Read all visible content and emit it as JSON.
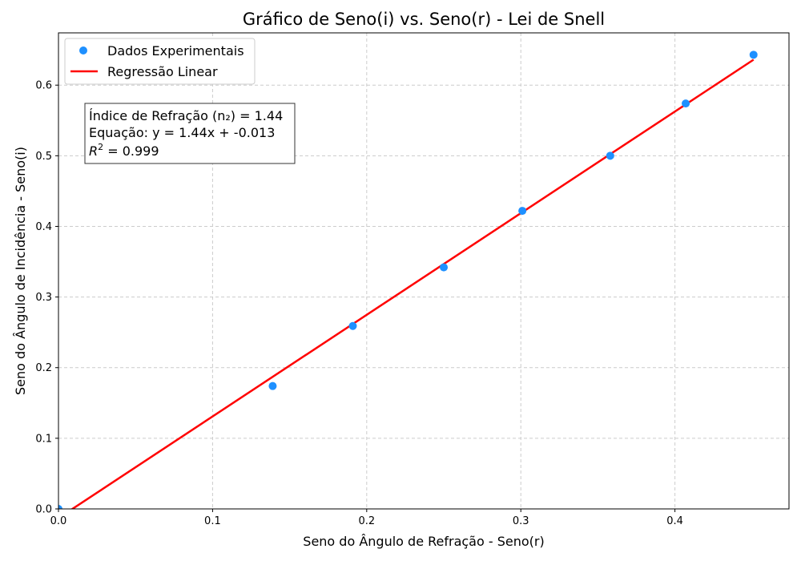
{
  "chart_data": {
    "type": "scatter",
    "title": "Gráfico de Seno(i) vs. Seno(r) - Lei de Snell",
    "xlabel": "Seno do Ângulo de Refração - Seno(r)",
    "ylabel": "Seno do Ângulo de Incidência - Seno(i)",
    "xlim": [
      0,
      0.474
    ],
    "ylim": [
      0,
      0.674
    ],
    "xticks": [
      "0.0",
      "0.1",
      "0.2",
      "0.3",
      "0.4"
    ],
    "yticks": [
      "0.0",
      "0.1",
      "0.2",
      "0.3",
      "0.4",
      "0.5",
      "0.6"
    ],
    "grid": true,
    "legend_position": "top-left",
    "series": [
      {
        "name": "Dados Experimentais",
        "type": "scatter",
        "color": "#1e90ff",
        "x": [
          0.0,
          0.139,
          0.191,
          0.25,
          0.301,
          0.358,
          0.407,
          0.451
        ],
        "y": [
          0.0,
          0.174,
          0.259,
          0.342,
          0.422,
          0.5,
          0.574,
          0.643
        ]
      },
      {
        "name": "Regressão Linear",
        "type": "line",
        "color": "#ff0000",
        "x": [
          0.0,
          0.451
        ],
        "y": [
          -0.013,
          0.636
        ]
      }
    ],
    "annotation": {
      "line1": "Índice de Refração (n₂) = 1.44",
      "line2": "Equação: y = 1.44x + -0.013",
      "line3_prefix": "R",
      "line3_sup": "2",
      "line3_suffix": " = 0.999"
    }
  }
}
